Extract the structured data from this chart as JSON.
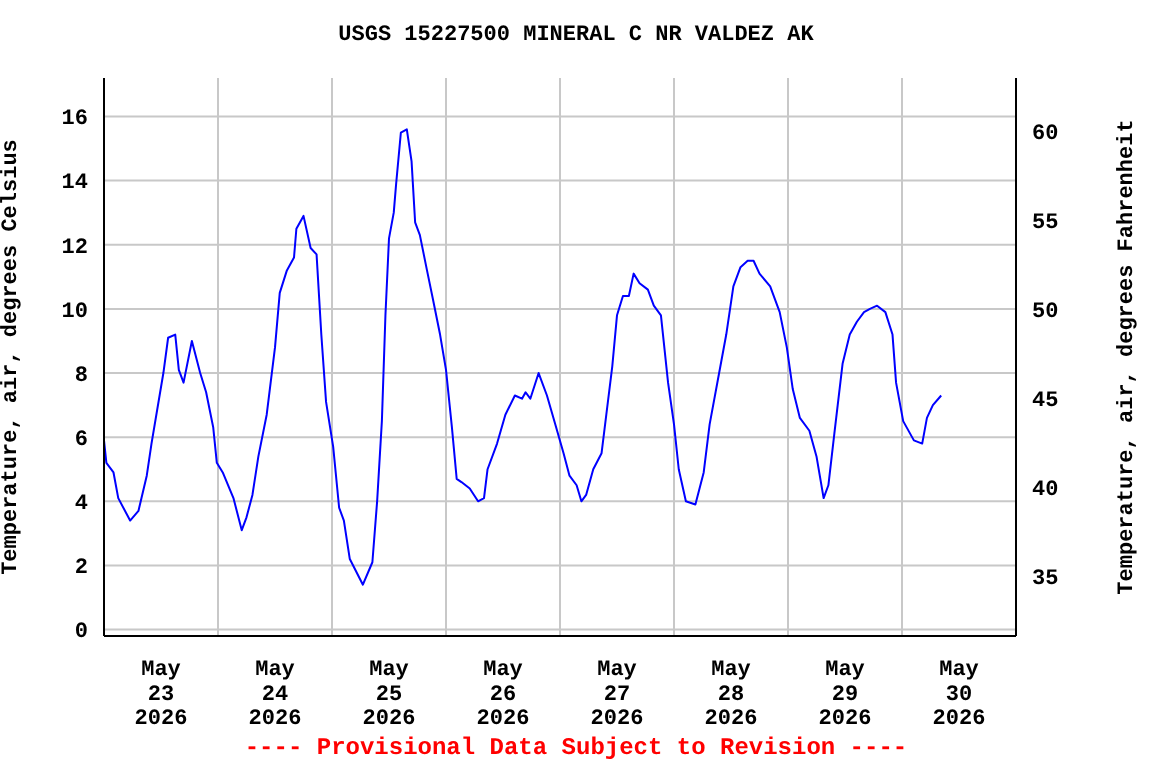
{
  "chart_data": {
    "type": "line",
    "title": "USGS 15227500 MINERAL C NR VALDEZ AK",
    "ylabel": "Temperature, air, degrees Celsius",
    "y2label": "Temperature, air, degrees Fahrenheit",
    "annotations": [
      "---- Provisional Data Subject to Revision ----"
    ],
    "x": [
      "2026-05-23T00:00",
      "2026-05-23T00:30",
      "2026-05-23T02:00",
      "2026-05-23T03:00",
      "2026-05-23T05:30",
      "2026-05-23T07:15",
      "2026-05-23T09:00",
      "2026-05-23T10:00",
      "2026-05-23T12:30",
      "2026-05-23T13:30",
      "2026-05-23T15:00",
      "2026-05-23T15:45",
      "2026-05-23T16:45",
      "2026-05-23T18:30",
      "2026-05-23T20:15",
      "2026-05-23T21:30",
      "2026-05-23T23:00",
      "2026-05-23T23:45",
      "2026-05-24T01:00",
      "2026-05-24T03:15",
      "2026-05-24T05:00",
      "2026-05-24T06:00",
      "2026-05-24T07:15",
      "2026-05-24T08:30",
      "2026-05-24T10:15",
      "2026-05-24T12:00",
      "2026-05-24T13:00",
      "2026-05-24T14:30",
      "2026-05-24T16:00",
      "2026-05-24T16:30",
      "2026-05-24T18:00",
      "2026-05-24T19:30",
      "2026-05-24T20:45",
      "2026-05-24T21:45",
      "2026-05-24T22:45",
      "2026-05-25T00:15",
      "2026-05-25T01:30",
      "2026-05-25T02:30",
      "2026-05-25T03:45",
      "2026-05-25T06:30",
      "2026-05-25T08:30",
      "2026-05-25T09:30",
      "2026-05-25T10:30",
      "2026-05-25T11:15",
      "2026-05-25T12:00",
      "2026-05-25T13:00",
      "2026-05-25T13:30",
      "2026-05-25T14:30",
      "2026-05-25T15:45",
      "2026-05-25T16:45",
      "2026-05-25T17:30",
      "2026-05-25T18:30",
      "2026-05-25T20:00",
      "2026-05-25T21:15",
      "2026-05-25T22:45",
      "2026-05-26T00:00",
      "2026-05-26T01:15",
      "2026-05-26T02:15",
      "2026-05-26T03:15",
      "2026-05-26T05:00",
      "2026-05-26T06:45",
      "2026-05-26T08:00",
      "2026-05-26T08:45",
      "2026-05-26T10:45",
      "2026-05-26T12:30",
      "2026-05-26T14:30",
      "2026-05-26T16:00",
      "2026-05-26T16:45",
      "2026-05-26T17:45",
      "2026-05-26T19:30",
      "2026-05-26T21:15",
      "2026-05-26T23:00",
      "2026-05-27T00:45",
      "2026-05-27T02:00",
      "2026-05-27T03:30",
      "2026-05-27T04:30",
      "2026-05-27T05:30",
      "2026-05-27T07:00",
      "2026-05-27T08:45",
      "2026-05-27T09:45",
      "2026-05-27T11:00",
      "2026-05-27T12:00",
      "2026-05-27T13:15",
      "2026-05-27T14:30",
      "2026-05-27T15:30",
      "2026-05-27T16:45",
      "2026-05-27T18:30",
      "2026-05-27T19:45",
      "2026-05-27T21:15",
      "2026-05-27T22:45",
      "2026-05-28T00:00",
      "2026-05-28T01:00",
      "2026-05-28T02:30",
      "2026-05-28T04:30",
      "2026-05-28T06:15",
      "2026-05-28T07:30",
      "2026-05-28T09:30",
      "2026-05-28T11:00",
      "2026-05-28T12:30",
      "2026-05-28T14:00",
      "2026-05-28T15:30",
      "2026-05-28T16:45",
      "2026-05-28T18:00",
      "2026-05-28T20:15",
      "2026-05-28T22:15",
      "2026-05-28T23:45",
      "2026-05-29T01:00",
      "2026-05-29T02:30",
      "2026-05-29T04:30",
      "2026-05-29T06:00",
      "2026-05-29T07:30",
      "2026-05-29T08:30",
      "2026-05-29T09:45",
      "2026-05-29T11:30",
      "2026-05-29T13:00",
      "2026-05-29T14:30",
      "2026-05-29T16:00",
      "2026-05-29T17:15",
      "2026-05-29T18:45",
      "2026-05-29T20:30",
      "2026-05-29T22:00",
      "2026-05-29T22:45",
      "2026-05-30T00:15",
      "2026-05-30T02:30",
      "2026-05-30T04:15",
      "2026-05-30T05:15",
      "2026-05-30T06:30",
      "2026-05-30T08:15"
    ],
    "series": [
      {
        "color": "#0000ff",
        "values": [
          5.9,
          5.2,
          4.9,
          4.1,
          3.4,
          3.7,
          4.8,
          5.8,
          8.0,
          9.1,
          9.2,
          8.1,
          7.7,
          9.0,
          8.0,
          7.4,
          6.3,
          5.2,
          4.9,
          4.1,
          3.1,
          3.5,
          4.2,
          5.4,
          6.7,
          8.8,
          10.5,
          11.2,
          11.6,
          12.5,
          12.9,
          11.9,
          11.7,
          9.2,
          7.1,
          5.7,
          3.8,
          3.4,
          2.2,
          1.4,
          2.1,
          4.0,
          6.5,
          9.8,
          12.2,
          13.0,
          13.9,
          15.5,
          15.6,
          14.6,
          12.7,
          12.3,
          11.2,
          10.3,
          9.2,
          8.1,
          6.3,
          4.7,
          4.6,
          4.4,
          4.0,
          4.1,
          5.0,
          5.8,
          6.7,
          7.3,
          7.2,
          7.4,
          7.2,
          8.0,
          7.3,
          6.4,
          5.5,
          4.8,
          4.5,
          4.0,
          4.2,
          5.0,
          5.5,
          6.7,
          8.2,
          9.8,
          10.4,
          10.4,
          11.1,
          10.8,
          10.6,
          10.1,
          9.8,
          7.7,
          6.4,
          5.0,
          4.0,
          3.9,
          4.9,
          6.4,
          8.0,
          9.2,
          10.7,
          11.3,
          11.5,
          11.5,
          11.1,
          10.7,
          9.9,
          8.8,
          7.5,
          6.6,
          6.2,
          5.4,
          4.1,
          4.5,
          6.1,
          8.3,
          9.2,
          9.6,
          9.9,
          10.0,
          10.1,
          9.9,
          9.2,
          7.7,
          6.5,
          5.9,
          5.8,
          6.6,
          7.0,
          7.3
        ]
      }
    ],
    "xlim": [
      "2026-05-23T00:00",
      "2026-05-31T00:00"
    ],
    "xticks": [
      {
        "value": "2026-05-23T12:00",
        "label": "May\n23\n2026"
      },
      {
        "value": "2026-05-24T12:00",
        "label": "May\n24\n2026"
      },
      {
        "value": "2026-05-25T12:00",
        "label": "May\n25\n2026"
      },
      {
        "value": "2026-05-26T12:00",
        "label": "May\n26\n2026"
      },
      {
        "value": "2026-05-27T12:00",
        "label": "May\n27\n2026"
      },
      {
        "value": "2026-05-28T12:00",
        "label": "May\n28\n2026"
      },
      {
        "value": "2026-05-29T12:00",
        "label": "May\n29\n2026"
      },
      {
        "value": "2026-05-30T12:00",
        "label": "May\n30\n2026"
      },
      {
        "value": "2026-05-24T00:00",
        "label": null
      },
      {
        "value": "2026-05-25T00:00",
        "label": null
      },
      {
        "value": "2026-05-26T00:00",
        "label": null
      },
      {
        "value": "2026-05-27T00:00",
        "label": null
      },
      {
        "value": "2026-05-28T00:00",
        "label": null
      },
      {
        "value": "2026-05-29T00:00",
        "label": null
      },
      {
        "value": "2026-05-30T00:00",
        "label": null
      }
    ],
    "ylim": [
      -0.2,
      17.2
    ],
    "yticks": [
      0,
      2,
      4,
      6,
      8,
      10,
      12,
      14,
      16
    ],
    "y2lim": [
      31.64,
      62.96
    ],
    "y2ticks": [
      35,
      40,
      45,
      50,
      55,
      60
    ],
    "grid": true,
    "marker": "none",
    "line_style": "solid"
  }
}
